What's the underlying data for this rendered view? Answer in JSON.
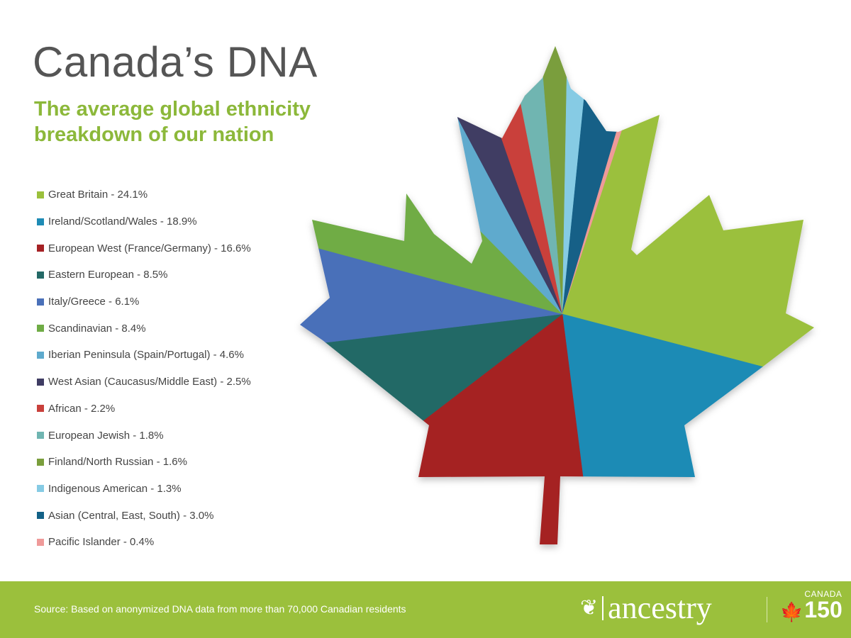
{
  "header": {
    "title": "Canada’s DNA",
    "subtitle": "The average global ethnicity breakdown of our nation"
  },
  "chart_data": {
    "type": "pie",
    "shape": "maple leaf",
    "legend_placement": "left",
    "slices": [
      {
        "label": "Great Britain - 24.1%",
        "name": "Great Britain",
        "value": 24.1,
        "color": "#9bc03c"
      },
      {
        "label": "Ireland/Scotland/Wales - 18.9%",
        "name": "Ireland/Scotland/Wales",
        "value": 18.9,
        "color": "#1e8bb5"
      },
      {
        "label": "European West (France/Germany) - 16.6%",
        "name": "European West (France/Germany)",
        "value": 16.6,
        "color": "#a52124"
      },
      {
        "label": "Eastern European - 8.5%",
        "name": "Eastern European",
        "value": 8.5,
        "color": "#246966"
      },
      {
        "label": "Italy/Greece - 6.1%",
        "name": "Italy/Greece",
        "value": 6.1,
        "color": "#4a70b9"
      },
      {
        "label": "Scandinavian - 8.4%",
        "name": "Scandinavian",
        "value": 8.4,
        "color": "#6fac45"
      },
      {
        "label": "Iberian Peninsula (Spain/Portugal) - 4.6%",
        "name": "Iberian Peninsula (Spain/Portugal)",
        "value": 4.6,
        "color": "#5eaacd"
      },
      {
        "label": "West Asian (Caucasus/Middle East) - 2.5%",
        "name": "West Asian (Caucasus/Middle East)",
        "value": 2.5,
        "color": "#3f3c63"
      },
      {
        "label": "African - 2.2%",
        "name": "African",
        "value": 2.2,
        "color": "#c9403b"
      },
      {
        "label": "European Jewish - 1.8%",
        "name": "European Jewish",
        "value": 1.8,
        "color": "#6fb5b1"
      },
      {
        "label": "Finland/North Russian - 1.6%",
        "name": "Finland/North Russian",
        "value": 1.6,
        "color": "#7a9e3c"
      },
      {
        "label": "Indigenous American  - 1.3%",
        "name": "Indigenous American",
        "value": 1.3,
        "color": "#86cbe4"
      },
      {
        "label": "Asian (Central, East, South) - 3.0%",
        "name": "Asian (Central, East, South)",
        "value": 3.0,
        "color": "#136187"
      },
      {
        "label": "Pacific Islander - 0.4%",
        "name": "Pacific Islander",
        "value": 0.4,
        "color": "#ef9a99"
      }
    ],
    "clockwise_order_from_top": [
      "Finland/North Russian",
      "Indigenous American",
      "Asian (Central, East, South)",
      "Pacific Islander",
      "Great Britain",
      "Ireland/Scotland/Wales",
      "European West (France/Germany)",
      "Eastern European",
      "Italy/Greece",
      "Scandinavian",
      "Iberian Peninsula (Spain/Portugal)",
      "West Asian (Caucasus/Middle East)",
      "African",
      "European Jewish"
    ]
  },
  "footer": {
    "source": "Source: Based on anonymized DNA data from more than 70,000 Canadian residents",
    "brand": "ancestry",
    "partner_top": "CANADA",
    "partner_num": "150"
  }
}
